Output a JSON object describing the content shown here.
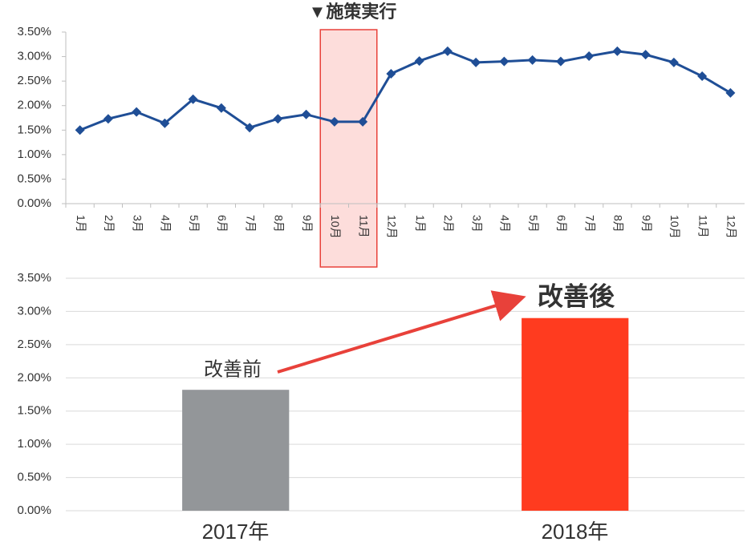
{
  "chart_data": [
    {
      "type": "line",
      "annotation": "▼施策実行",
      "categories": [
        "1月",
        "2月",
        "3月",
        "4月",
        "5月",
        "6月",
        "7月",
        "8月",
        "9月",
        "10月",
        "11月",
        "12月",
        "1月",
        "2月",
        "3月",
        "4月",
        "5月",
        "6月",
        "7月",
        "8月",
        "9月",
        "10月",
        "11月",
        "12月"
      ],
      "series": [
        {
          "color": "#1f4e96",
          "values": [
            1.5,
            1.73,
            1.87,
            1.64,
            2.13,
            1.95,
            1.55,
            1.73,
            1.82,
            1.67,
            1.67,
            2.65,
            2.91,
            3.11,
            2.88,
            2.9,
            2.93,
            2.9,
            3.01,
            3.11,
            3.04,
            2.88,
            2.6,
            2.26
          ]
        }
      ],
      "ylim": [
        0,
        3.5
      ],
      "yticks": [
        {
          "value": 0,
          "label": "0.00%"
        },
        {
          "value": 0.5,
          "label": "0.50%"
        },
        {
          "value": 1,
          "label": "1.00%"
        },
        {
          "value": 1.5,
          "label": "1.50%"
        },
        {
          "value": 2,
          "label": "2.00%"
        },
        {
          "value": 2.5,
          "label": "2.50%"
        },
        {
          "value": 3,
          "label": "3.00%"
        },
        {
          "value": 3.5,
          "label": "3.50%"
        }
      ],
      "grid": false
    },
    {
      "type": "bar",
      "annotations": [
        "改善前",
        "改善後"
      ],
      "categories": [
        "2017年",
        "2018年"
      ],
      "values": [
        1.82,
        2.9
      ],
      "colors": [
        "#939699",
        "#ff3b1f"
      ],
      "ylim": [
        0,
        3.5
      ],
      "yticks": [
        {
          "value": 0,
          "label": "0.00%"
        },
        {
          "value": 0.5,
          "label": "0.50%"
        },
        {
          "value": 1,
          "label": "1.00%"
        },
        {
          "value": 1.5,
          "label": "1.50%"
        },
        {
          "value": 2,
          "label": "2.00%"
        },
        {
          "value": 2.5,
          "label": "2.50%"
        },
        {
          "value": 3,
          "label": "3.00%"
        },
        {
          "value": 3.5,
          "label": "3.50%"
        }
      ],
      "grid": true
    }
  ]
}
